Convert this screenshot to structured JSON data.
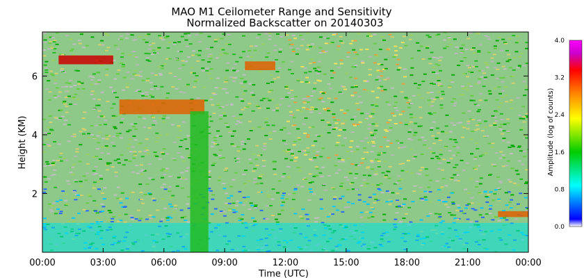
{
  "chart_data": {
    "type": "heatmap",
    "title_line1": "MAO M1 Ceilometer Range and Sensitivity",
    "title_line2": "Normalized Backscatter on 20140303",
    "xlabel": "Time (UTC)",
    "ylabel": "Height (KM)",
    "x_ticks": [
      "00:00",
      "03:00",
      "06:00",
      "09:00",
      "12:00",
      "15:00",
      "18:00",
      "21:00",
      "00:00"
    ],
    "x_tick_hours": [
      0,
      3,
      6,
      9,
      12,
      15,
      18,
      21,
      24
    ],
    "xlim_hours": [
      0,
      24
    ],
    "y_ticks": [
      "2",
      "4",
      "6"
    ],
    "y_tick_values": [
      2,
      4,
      6
    ],
    "ylim_km": [
      0,
      7.5
    ],
    "colorbar": {
      "label": "Amplitude (log of counts)",
      "ticks": [
        "0.0",
        "0.8",
        "1.6",
        "2.4",
        "3.2",
        "4.0"
      ],
      "tick_values": [
        0.0,
        0.8,
        1.6,
        2.4,
        3.2,
        4.0
      ],
      "range": [
        0.0,
        4.0
      ],
      "colors": [
        "#ffffff",
        "#0000ff",
        "#00ffff",
        "#00cc00",
        "#ffff00",
        "#ff7f00",
        "#ff0000",
        "#cc00cc",
        "#ff00ff"
      ]
    },
    "features": [
      {
        "name": "surface-layer",
        "hours": [
          0,
          24
        ],
        "height_km": [
          0,
          1.0
        ],
        "amplitude": 0.7
      },
      {
        "name": "cloud-layer-early",
        "hours": [
          0.8,
          3.5
        ],
        "height_km": [
          6.4,
          6.7
        ],
        "amplitude": 3.2
      },
      {
        "name": "cloud-layer-main",
        "hours": [
          3.8,
          8.0
        ],
        "height_km": [
          4.7,
          5.2
        ],
        "amplitude": 3.0
      },
      {
        "name": "cloud-layer-mid",
        "hours": [
          10.0,
          11.5
        ],
        "height_km": [
          6.2,
          6.5
        ],
        "amplitude": 3.0
      },
      {
        "name": "precip-shaft",
        "hours": [
          7.3,
          8.2
        ],
        "height_km": [
          0,
          4.8
        ],
        "amplitude": 1.4
      },
      {
        "name": "low-cloud-late",
        "hours": [
          22.5,
          24
        ],
        "height_km": [
          1.2,
          1.4
        ],
        "amplitude": 3.0
      }
    ]
  }
}
